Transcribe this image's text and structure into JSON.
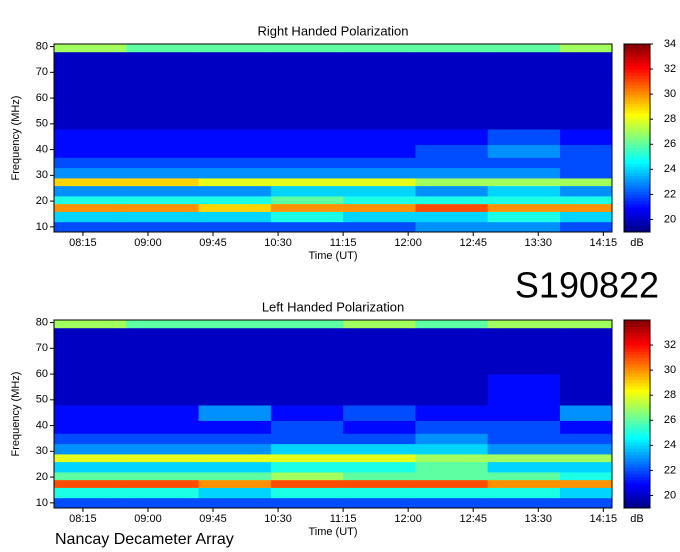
{
  "page": {
    "event": "S190822",
    "instrument": "Nancay Decameter Array"
  },
  "chart_data": [
    {
      "type": "heatmap",
      "title": "Right Handed Polarization",
      "x_label": "Time (UT)",
      "y_label": "Frequency (MHz)",
      "colorbar_label": "dB",
      "colormap": "jet",
      "xlim": [
        475,
        861
      ],
      "ylim": [
        8,
        81
      ],
      "zlim": [
        19,
        34
      ],
      "xticks": [
        {
          "value": 495,
          "label": "08:15"
        },
        {
          "value": 540,
          "label": "09:00"
        },
        {
          "value": 585,
          "label": "09:45"
        },
        {
          "value": 630,
          "label": "10:30"
        },
        {
          "value": 675,
          "label": "11:15"
        },
        {
          "value": 720,
          "label": "12:00"
        },
        {
          "value": 765,
          "label": "12:45"
        },
        {
          "value": 810,
          "label": "13:30"
        },
        {
          "value": 855,
          "label": "14:15"
        }
      ],
      "yticks": [
        10,
        20,
        30,
        40,
        50,
        60,
        70,
        80
      ],
      "zticks": [
        20,
        22,
        24,
        26,
        28,
        30,
        32,
        34
      ],
      "x_bins": [
        475,
        525,
        575,
        625,
        675,
        725,
        775,
        825,
        861
      ],
      "y_bins": [
        8,
        12,
        16,
        19,
        22,
        26,
        29,
        33,
        37,
        42,
        48,
        60,
        72,
        78,
        81
      ],
      "values": [
        [
          22,
          22,
          22,
          22,
          22,
          23,
          23,
          22
        ],
        [
          24,
          24,
          24,
          25,
          24,
          24,
          25,
          24
        ],
        [
          30,
          30,
          29,
          30,
          30,
          31,
          30,
          30
        ],
        [
          25,
          25,
          25,
          26,
          25,
          25,
          25,
          25
        ],
        [
          23,
          23,
          23,
          24,
          24,
          23,
          24,
          23
        ],
        [
          29,
          29,
          28,
          28,
          28,
          27,
          27,
          27
        ],
        [
          23,
          23,
          23,
          23,
          23,
          23,
          23,
          22
        ],
        [
          22,
          22,
          22,
          22,
          22,
          22,
          22,
          22
        ],
        [
          21,
          21,
          21,
          21,
          21,
          22,
          23,
          22
        ],
        [
          21,
          21,
          21,
          21,
          21,
          21,
          22,
          21
        ],
        [
          20,
          20,
          20,
          20,
          20,
          20,
          20,
          20
        ],
        [
          20,
          20,
          20,
          20,
          20,
          20,
          20,
          20
        ],
        [
          20,
          20,
          20,
          20,
          20,
          20,
          20,
          20
        ],
        [
          27,
          26,
          26,
          26,
          26,
          26,
          26,
          27
        ]
      ]
    },
    {
      "type": "heatmap",
      "title": "Left Handed Polarization",
      "x_label": "Time (UT)",
      "y_label": "Frequency (MHz)",
      "colorbar_label": "dB",
      "colormap": "jet",
      "xlim": [
        475,
        861
      ],
      "ylim": [
        8,
        81
      ],
      "zlim": [
        19,
        34
      ],
      "xticks": [
        {
          "value": 495,
          "label": "08:15"
        },
        {
          "value": 540,
          "label": "09:00"
        },
        {
          "value": 585,
          "label": "09:45"
        },
        {
          "value": 630,
          "label": "10:30"
        },
        {
          "value": 675,
          "label": "11:15"
        },
        {
          "value": 720,
          "label": "12:00"
        },
        {
          "value": 765,
          "label": "12:45"
        },
        {
          "value": 810,
          "label": "13:30"
        },
        {
          "value": 855,
          "label": "14:15"
        }
      ],
      "yticks": [
        10,
        20,
        30,
        40,
        50,
        60,
        70,
        80
      ],
      "zticks": [
        20,
        22,
        24,
        26,
        28,
        30,
        32
      ],
      "x_bins": [
        475,
        525,
        575,
        625,
        675,
        725,
        775,
        825,
        861
      ],
      "y_bins": [
        8,
        12,
        16,
        19,
        22,
        26,
        29,
        33,
        37,
        42,
        48,
        60,
        72,
        78,
        81
      ],
      "values": [
        [
          22,
          22,
          22,
          22,
          22,
          22,
          22,
          22
        ],
        [
          25,
          25,
          24,
          25,
          25,
          25,
          25,
          24
        ],
        [
          31,
          31,
          30,
          31,
          31,
          31,
          30,
          30
        ],
        [
          26,
          26,
          26,
          27,
          26,
          26,
          26,
          25
        ],
        [
          24,
          24,
          24,
          25,
          25,
          26,
          24,
          24
        ],
        [
          28,
          28,
          28,
          28,
          28,
          27,
          27,
          27
        ],
        [
          23,
          23,
          23,
          24,
          24,
          24,
          23,
          23
        ],
        [
          22,
          22,
          22,
          22,
          22,
          23,
          22,
          22
        ],
        [
          21,
          21,
          21,
          22,
          21,
          22,
          22,
          21
        ],
        [
          21,
          21,
          23,
          21,
          22,
          21,
          21,
          23
        ],
        [
          20,
          20,
          20,
          20,
          20,
          20,
          21,
          20
        ],
        [
          20,
          20,
          20,
          20,
          20,
          20,
          20,
          20
        ],
        [
          20,
          20,
          20,
          20,
          20,
          20,
          20,
          20
        ],
        [
          27,
          26,
          26,
          26,
          27,
          26,
          27,
          27
        ]
      ]
    }
  ]
}
